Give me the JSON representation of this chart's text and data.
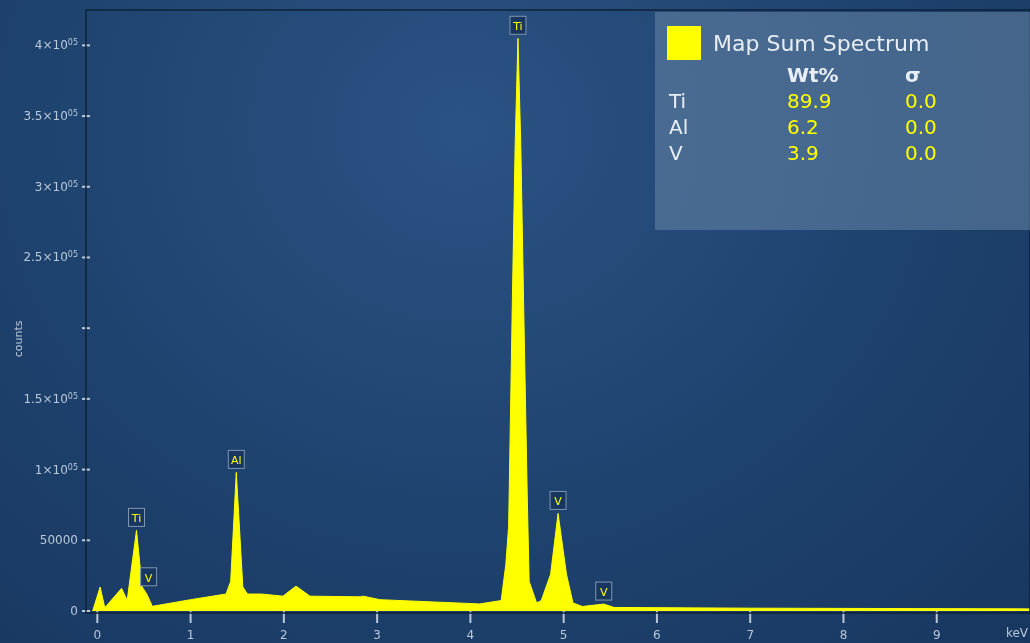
{
  "chart_data": {
    "type": "area",
    "xlabel": "keV",
    "ylabel": "counts",
    "x": [
      -0.05,
      0.03,
      0.08,
      0.26,
      0.32,
      0.42,
      0.48,
      0.53,
      0.59,
      1.0,
      1.38,
      1.43,
      1.49,
      1.56,
      1.61,
      1.76,
      1.99,
      2.13,
      2.28,
      2.82,
      2.85,
      3.03,
      4.1,
      4.33,
      4.38,
      4.41,
      4.45,
      4.48,
      4.51,
      4.54,
      4.57,
      4.61,
      4.63,
      4.71,
      4.76,
      4.86,
      4.94,
      5.03,
      5.1,
      5.2,
      5.43,
      5.54,
      7.0,
      10.0
    ],
    "series": [
      {
        "name": "Map Sum Spectrum",
        "color": "#ffff00",
        "values": [
          0,
          17000,
          2300,
          16000,
          7500,
          57000,
          17000,
          12000,
          3300,
          8000,
          12000,
          21000,
          98000,
          17000,
          12000,
          12000,
          10500,
          17600,
          10500,
          10000,
          10500,
          8000,
          5000,
          7400,
          33000,
          60000,
          220000,
          330000,
          405000,
          330000,
          220000,
          80000,
          21000,
          5700,
          7400,
          26000,
          69000,
          26000,
          5700,
          3200,
          4900,
          2500,
          2000,
          1500
        ]
      }
    ],
    "xlim": [
      -0.1,
      10.0
    ],
    "xticks": [
      0,
      1,
      2,
      3,
      4,
      5,
      6,
      7,
      8,
      9
    ],
    "ylim": [
      0,
      425000
    ],
    "yticks": [
      0,
      50000,
      {
        "value": 100000,
        "label": "1×10$^{05}$"
      },
      {
        "value": 150000,
        "label": "1.5×10$^{05}$"
      },
      {
        "value": 200000,
        "label": null
      },
      {
        "value": 250000,
        "label": "2.5×10$^{05}$"
      },
      {
        "value": 300000,
        "label": "3×10$^{05}$"
      },
      {
        "value": 350000,
        "label": "3.5×10$^{05}$"
      },
      {
        "value": 400000,
        "label": "4×10$^{05}$"
      }
    ],
    "legend": "top right",
    "annotations": [
      {
        "text": "Ti",
        "x": 0.42,
        "y": 57000
      },
      {
        "text": "V",
        "x": 0.55,
        "y": 15000
      },
      {
        "text": "Al",
        "x": 1.49,
        "y": 98000
      },
      {
        "text": "Ti",
        "x": 4.51,
        "y": 405000
      },
      {
        "text": "V",
        "x": 4.94,
        "y": 69000
      },
      {
        "text": "V",
        "x": 5.43,
        "y": 4900
      },
      "Wt%",
      "σ",
      "Ti",
      "89.9",
      "0.0",
      "Al",
      "6.2",
      "0.0",
      "V",
      "3.9",
      "0.0"
    ]
  }
}
